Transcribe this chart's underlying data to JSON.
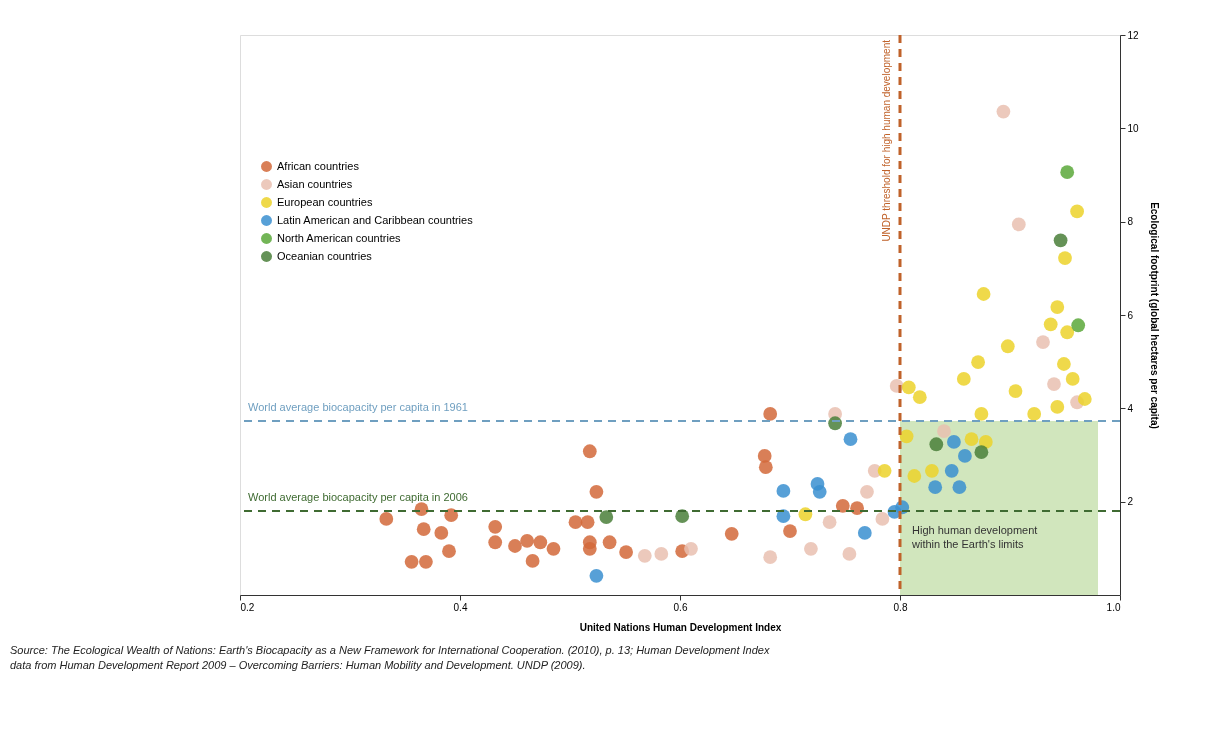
{
  "chart_data": {
    "type": "scatter",
    "xlabel": "United Nations Human Development Index",
    "ylabel": "Ecological footprint (global hectares per capita)",
    "xlim": [
      0.2,
      1.0
    ],
    "ylim": [
      0,
      12
    ],
    "xticks": [
      0.2,
      0.4,
      0.6,
      0.8,
      {
        "value": 1.0,
        "label": "1.0"
      }
    ],
    "yticks": [
      2,
      4,
      6,
      8,
      10,
      12
    ],
    "grid": false,
    "legend": "top left",
    "marker": "circle",
    "series": [
      {
        "name": "African countries",
        "color": "#d2693a",
        "x": [
          0.333,
          0.365,
          0.392,
          0.367,
          0.383,
          0.39,
          0.356,
          0.369,
          0.432,
          0.432,
          0.45,
          0.461,
          0.473,
          0.485,
          0.466,
          0.518,
          0.524,
          0.505,
          0.516,
          0.518,
          0.518,
          0.536,
          0.551,
          0.602,
          0.647,
          0.677,
          0.678,
          0.682,
          0.7,
          0.748,
          0.761
        ],
        "values": [
          1.63,
          1.84,
          1.71,
          1.41,
          1.33,
          0.94,
          0.71,
          0.71,
          1.46,
          1.13,
          1.05,
          1.16,
          1.13,
          0.99,
          0.73,
          3.08,
          2.21,
          1.56,
          1.56,
          0.99,
          1.13,
          1.13,
          0.92,
          0.94,
          1.31,
          2.98,
          2.74,
          3.88,
          1.37,
          1.91,
          1.86
        ]
      },
      {
        "name": "Asian countries",
        "color": "#e9bfb0",
        "x": [
          0.894,
          0.908,
          0.93,
          0.94,
          0.961,
          0.84,
          0.797,
          0.777,
          0.784,
          0.754,
          0.736,
          0.741,
          0.568,
          0.583,
          0.61,
          0.682,
          0.719,
          0.77
        ],
        "values": [
          10.36,
          7.94,
          5.42,
          4.52,
          4.13,
          3.51,
          4.48,
          2.66,
          1.63,
          0.88,
          1.56,
          3.88,
          0.84,
          0.88,
          0.99,
          0.81,
          0.99,
          2.21
        ]
      },
      {
        "name": "European countries",
        "color": "#ecd22a",
        "x": [
          0.961,
          0.95,
          0.876,
          0.943,
          0.937,
          0.952,
          0.898,
          0.871,
          0.858,
          0.949,
          0.957,
          0.905,
          0.808,
          0.818,
          0.874,
          0.922,
          0.943,
          0.968,
          0.806,
          0.865,
          0.878,
          0.786,
          0.813,
          0.829,
          0.714
        ],
        "values": [
          8.22,
          7.22,
          6.45,
          6.17,
          5.8,
          5.63,
          5.33,
          4.99,
          4.63,
          4.95,
          4.63,
          4.37,
          4.45,
          4.24,
          3.88,
          3.88,
          4.03,
          4.2,
          3.4,
          3.34,
          3.28,
          2.66,
          2.55,
          2.66,
          1.73
        ]
      },
      {
        "name": "Latin American and Caribbean countries",
        "color": "#3a8fd0",
        "x": [
          0.524,
          0.694,
          0.725,
          0.727,
          0.694,
          0.755,
          0.768,
          0.795,
          0.802,
          0.847,
          0.832,
          0.854,
          0.859,
          0.849
        ],
        "values": [
          0.41,
          2.23,
          2.38,
          2.21,
          1.69,
          3.34,
          1.33,
          1.78,
          1.88,
          2.66,
          2.31,
          2.31,
          2.98,
          3.28
        ]
      },
      {
        "name": "North American countries",
        "color": "#5aa83a",
        "x": [
          0.952,
          0.962
        ],
        "values": [
          9.06,
          5.78
        ]
      },
      {
        "name": "Oceanian countries",
        "color": "#4a7f3a",
        "x": [
          0.946,
          0.741,
          0.533,
          0.602,
          0.833,
          0.874
        ],
        "values": [
          7.6,
          3.68,
          1.67,
          1.69,
          3.23,
          3.06
        ]
      }
    ],
    "ref_lines": [
      {
        "axis": "y",
        "value": 3.73,
        "label": "World average biocapacity per capita in 1961",
        "color": "#6f9fc0",
        "line_style": "dashed"
      },
      {
        "axis": "y",
        "value": 1.8,
        "label": "World average biocapacity per capita in 2006",
        "color": "#3f6b32",
        "line_style": "dashed"
      },
      {
        "axis": "x",
        "value": 0.8,
        "label": "UNDP threshold for high human development",
        "color": "#c0622a",
        "line_style": "dashed"
      }
    ],
    "bands": [
      {
        "axis": "x",
        "from": 0.8,
        "to": 0.98,
        "label": "High human development within the Earth's limits",
        "color": "#c6e0ad"
      }
    ],
    "annotations": [
      "Source: The Ecological Wealth of Nations: Earth's Biocapacity as a New Framework for International Cooperation. (2010), p. 13; Human Development Index data from Human Development Report 2009 – Overcoming Barriers: Human Mobility and Development. UNDP (2009)."
    ]
  }
}
